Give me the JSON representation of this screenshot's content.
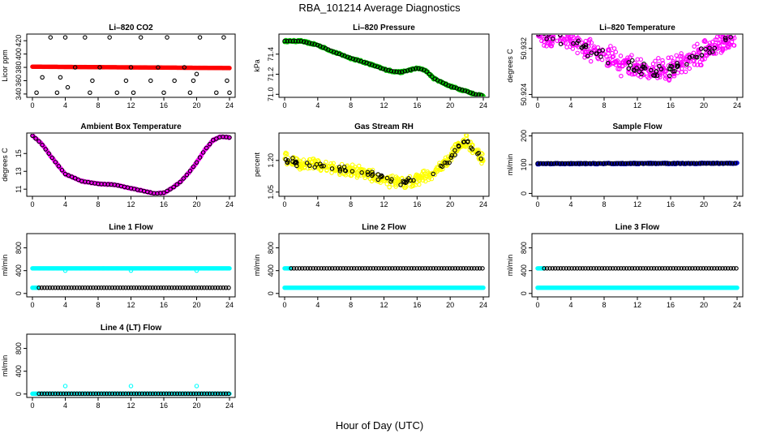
{
  "figure": {
    "title": "RBA_101214  Average Diagnostics",
    "xlabel": "Hour of Day (UTC)"
  },
  "chart_data": [
    {
      "type": "scatter",
      "title": "Li–820 CO2",
      "ylabel": "Licor ppm",
      "xlim": [
        0,
        24
      ],
      "ylim": [
        335,
        430
      ],
      "xticks": [
        "0",
        "4",
        "8",
        "12",
        "16",
        "20",
        "24"
      ],
      "yticks": [
        "340",
        "360",
        "380",
        "400",
        "420"
      ],
      "series": [
        {
          "color": "#ff0000",
          "fill": true,
          "pattern": "flat",
          "x": [
            0,
            24
          ],
          "y": [
            381,
            379
          ]
        },
        {
          "color": "#000000",
          "fill": false,
          "pattern": "points",
          "x": [
            0.5,
            1.2,
            2.2,
            3.0,
            3.4,
            4.0,
            4.3,
            5.2,
            6.4,
            7.0,
            7.3,
            8.2,
            9.4,
            10.3,
            11.4,
            12.0,
            12.3,
            13.2,
            14.4,
            15.3,
            16.0,
            16.4,
            17.3,
            18.5,
            19.2,
            19.6,
            20.0,
            20.4,
            22.4,
            23.3,
            23.7,
            24.0
          ],
          "y": [
            342,
            365,
            425,
            342,
            365,
            425,
            350,
            380,
            425,
            342,
            360,
            380,
            425,
            342,
            360,
            380,
            342,
            425,
            360,
            380,
            342,
            425,
            360,
            380,
            342,
            360,
            370,
            425,
            342,
            425,
            360,
            342
          ]
        }
      ]
    },
    {
      "type": "scatter",
      "title": "Li–820 Pressure",
      "ylabel": "kPa",
      "xlim": [
        0,
        24
      ],
      "ylim": [
        70.97,
        71.6
      ],
      "xticks": [
        "0",
        "4",
        "8",
        "12",
        "16",
        "20",
        "24"
      ],
      "yticks": [
        "71.0",
        "71.2",
        "71.4"
      ],
      "series": [
        {
          "color": "#00cc00",
          "fill": true,
          "pattern": "line",
          "band": 0.01,
          "x": [
            0,
            2,
            4,
            6,
            8,
            10,
            12,
            13,
            14,
            16,
            17,
            18,
            20,
            22,
            23,
            24
          ],
          "y": [
            71.53,
            71.53,
            71.49,
            71.42,
            71.36,
            71.31,
            71.25,
            71.23,
            71.22,
            71.26,
            71.24,
            71.16,
            71.08,
            71.03,
            71.0,
            70.99
          ]
        },
        {
          "color": "#000000",
          "fill": false,
          "pattern": "trace",
          "step": 0.33,
          "x": [
            0,
            2,
            4,
            6,
            8,
            10,
            12,
            13,
            14,
            16,
            17,
            18,
            20,
            22,
            23,
            24
          ],
          "y": [
            71.53,
            71.53,
            71.49,
            71.42,
            71.36,
            71.31,
            71.25,
            71.23,
            71.22,
            71.26,
            71.24,
            71.16,
            71.08,
            71.03,
            71.0,
            70.99
          ]
        }
      ]
    },
    {
      "type": "scatter",
      "title": "Li–820 Temperature",
      "ylabel": "degrees C",
      "xlim": [
        0,
        24
      ],
      "ylim": [
        50.9235,
        50.9345
      ],
      "xticks": [
        "0",
        "4",
        "8",
        "12",
        "16",
        "20",
        "24"
      ],
      "yticks": [
        "50.924",
        "50.932"
      ],
      "series": [
        {
          "color": "#ff00ff",
          "fill": false,
          "pattern": "cloud",
          "count": 420,
          "band": 0.0023,
          "x": [
            0,
            2,
            4,
            6,
            8,
            10,
            12,
            14,
            16,
            18,
            20,
            22,
            24
          ],
          "y": [
            50.9343,
            50.934,
            50.9334,
            50.9318,
            50.9308,
            50.9294,
            50.9286,
            50.9282,
            50.9284,
            50.9298,
            50.9314,
            50.933,
            50.9343
          ]
        },
        {
          "color": "#000000",
          "fill": false,
          "pattern": "cloud",
          "count": 75,
          "band": 0.0013,
          "x": [
            0,
            2,
            4,
            6,
            8,
            10,
            12,
            14,
            16,
            18,
            20,
            22,
            24
          ],
          "y": [
            50.9343,
            50.934,
            50.9334,
            50.9318,
            50.9308,
            50.9294,
            50.9286,
            50.9282,
            50.9284,
            50.9298,
            50.9314,
            50.933,
            50.9343
          ]
        }
      ]
    },
    {
      "type": "scatter",
      "title": "Ambient Box Temperature",
      "ylabel": "degrees C",
      "xlim": [
        0,
        24
      ],
      "ylim": [
        10.2,
        17.3
      ],
      "xticks": [
        "0",
        "4",
        "8",
        "12",
        "16",
        "20",
        "24"
      ],
      "yticks": [
        "11",
        "13",
        "15"
      ],
      "series": [
        {
          "color": "#ff00ff",
          "fill": true,
          "pattern": "line",
          "band": 0.06,
          "x": [
            0,
            1,
            2,
            3,
            4,
            6,
            8,
            10,
            12,
            14,
            15,
            16,
            17,
            18,
            19,
            20,
            21,
            22,
            23,
            24
          ],
          "y": [
            17.0,
            16.2,
            15.0,
            13.8,
            12.7,
            11.9,
            11.6,
            11.5,
            11.1,
            10.7,
            10.5,
            10.6,
            11.1,
            11.8,
            12.8,
            14.0,
            15.4,
            16.5,
            16.9,
            16.8
          ]
        },
        {
          "color": "#000000",
          "fill": false,
          "pattern": "trace",
          "step": 0.4,
          "x": [
            0,
            1,
            2,
            3,
            4,
            6,
            8,
            10,
            12,
            14,
            15,
            16,
            17,
            18,
            19,
            20,
            21,
            22,
            23,
            24
          ],
          "y": [
            17.0,
            16.2,
            15.0,
            13.8,
            12.7,
            11.9,
            11.6,
            11.5,
            11.1,
            10.7,
            10.5,
            10.6,
            11.1,
            11.8,
            12.8,
            14.0,
            15.4,
            16.5,
            16.9,
            16.8
          ]
        }
      ]
    },
    {
      "type": "scatter",
      "title": "Gas Stream RH",
      "ylabel": "percent",
      "xlim": [
        0,
        24
      ],
      "ylim": [
        1.03,
        1.33
      ],
      "xticks": [
        "0",
        "4",
        "8",
        "12",
        "16",
        "20",
        "24"
      ],
      "yticks": [
        "1.05",
        "1.20"
      ],
      "series": [
        {
          "color": "#ffff00",
          "fill": false,
          "pattern": "cloud",
          "count": 430,
          "band": 0.035,
          "x": [
            0,
            2,
            4,
            6,
            8,
            10,
            12,
            14,
            16,
            18,
            19,
            20,
            21,
            22,
            23,
            24
          ],
          "y": [
            1.21,
            1.18,
            1.18,
            1.16,
            1.15,
            1.14,
            1.11,
            1.09,
            1.11,
            1.14,
            1.17,
            1.21,
            1.27,
            1.29,
            1.25,
            1.2
          ]
        },
        {
          "color": "#000000",
          "fill": false,
          "pattern": "cloud",
          "count": 70,
          "band": 0.02,
          "x": [
            0,
            2,
            4,
            6,
            8,
            10,
            12,
            14,
            16,
            18,
            19,
            20,
            21,
            22,
            23,
            24
          ],
          "y": [
            1.21,
            1.18,
            1.18,
            1.16,
            1.15,
            1.14,
            1.11,
            1.09,
            1.11,
            1.14,
            1.17,
            1.21,
            1.27,
            1.29,
            1.25,
            1.2
          ]
        }
      ]
    },
    {
      "type": "scatter",
      "title": "Sample Flow",
      "ylabel": "ml/min",
      "xlim": [
        0,
        24
      ],
      "ylim": [
        -10,
        210
      ],
      "xticks": [
        "0",
        "4",
        "8",
        "12",
        "16",
        "20",
        "24"
      ],
      "yticks": [
        "0",
        "100",
        "200"
      ],
      "series": [
        {
          "color": "#0000cc",
          "fill": true,
          "pattern": "line",
          "band": 2,
          "x": [
            0,
            24
          ],
          "y": [
            103,
            105
          ]
        },
        {
          "color": "#000000",
          "fill": false,
          "pattern": "trace",
          "step": 0.33,
          "x": [
            0,
            24
          ],
          "y": [
            104,
            105
          ]
        }
      ]
    },
    {
      "type": "scatter",
      "title": "Line 1 Flow",
      "ylabel": "ml/min",
      "xlim": [
        0,
        24
      ],
      "ylim": [
        -60,
        1050
      ],
      "xticks": [
        "0",
        "4",
        "8",
        "12",
        "16",
        "20",
        "24"
      ],
      "yticks": [
        "0",
        "400",
        "800"
      ],
      "series": [
        {
          "color": "#00ffff",
          "fill": true,
          "pattern": "flat",
          "x": [
            0,
            24
          ],
          "y": [
            440,
            440
          ]
        },
        {
          "color": "#00ffff",
          "fill": true,
          "pattern": "flat",
          "x": [
            0,
            0.8
          ],
          "y": [
            100,
            100
          ]
        },
        {
          "color": "#00ffff",
          "fill": false,
          "pattern": "points",
          "x": [
            4,
            12,
            20
          ],
          "y": [
            400,
            400,
            400
          ]
        },
        {
          "color": "#000000",
          "fill": false,
          "pattern": "trace",
          "step": 0.33,
          "x": [
            0.8,
            24
          ],
          "y": [
            100,
            100
          ]
        }
      ]
    },
    {
      "type": "scatter",
      "title": "Line 2 Flow",
      "ylabel": "ml/min",
      "xlim": [
        0,
        24
      ],
      "ylim": [
        -60,
        1050
      ],
      "xticks": [
        "0",
        "4",
        "8",
        "12",
        "16",
        "20",
        "24"
      ],
      "yticks": [
        "0",
        "400",
        "800"
      ],
      "series": [
        {
          "color": "#00ffff",
          "fill": true,
          "pattern": "flat",
          "x": [
            0,
            24
          ],
          "y": [
            100,
            100
          ]
        },
        {
          "color": "#00ffff",
          "fill": true,
          "pattern": "flat",
          "x": [
            0,
            0.8
          ],
          "y": [
            440,
            440
          ]
        },
        {
          "color": "#000000",
          "fill": false,
          "pattern": "trace",
          "step": 0.33,
          "x": [
            0.8,
            24
          ],
          "y": [
            440,
            440
          ]
        }
      ]
    },
    {
      "type": "scatter",
      "title": "Line 3 Flow",
      "ylabel": "ml/min",
      "xlim": [
        0,
        24
      ],
      "ylim": [
        -60,
        1050
      ],
      "xticks": [
        "0",
        "4",
        "8",
        "12",
        "16",
        "20",
        "24"
      ],
      "yticks": [
        "0",
        "400",
        "800"
      ],
      "series": [
        {
          "color": "#00ffff",
          "fill": true,
          "pattern": "flat",
          "x": [
            0,
            24
          ],
          "y": [
            100,
            100
          ]
        },
        {
          "color": "#00ffff",
          "fill": true,
          "pattern": "flat",
          "x": [
            0,
            0.8
          ],
          "y": [
            440,
            440
          ]
        },
        {
          "color": "#000000",
          "fill": false,
          "pattern": "trace",
          "step": 0.33,
          "x": [
            0.8,
            24
          ],
          "y": [
            440,
            440
          ]
        }
      ]
    },
    {
      "type": "scatter",
      "title": "Line 4 (LT) Flow",
      "ylabel": "ml/min",
      "xlim": [
        0,
        24
      ],
      "ylim": [
        -60,
        1050
      ],
      "xticks": [
        "0",
        "4",
        "8",
        "12",
        "16",
        "20",
        "24"
      ],
      "yticks": [
        "0",
        "400",
        "800"
      ],
      "series": [
        {
          "color": "#00ffff",
          "fill": true,
          "pattern": "flat",
          "x": [
            0,
            24
          ],
          "y": [
            5,
            5
          ]
        },
        {
          "color": "#00ffff",
          "fill": false,
          "pattern": "points",
          "x": [
            4,
            12,
            20
          ],
          "y": [
            140,
            140,
            140
          ]
        },
        {
          "color": "#000000",
          "fill": false,
          "pattern": "trace",
          "step": 0.33,
          "x": [
            0.8,
            24
          ],
          "y": [
            5,
            5
          ]
        }
      ]
    }
  ]
}
